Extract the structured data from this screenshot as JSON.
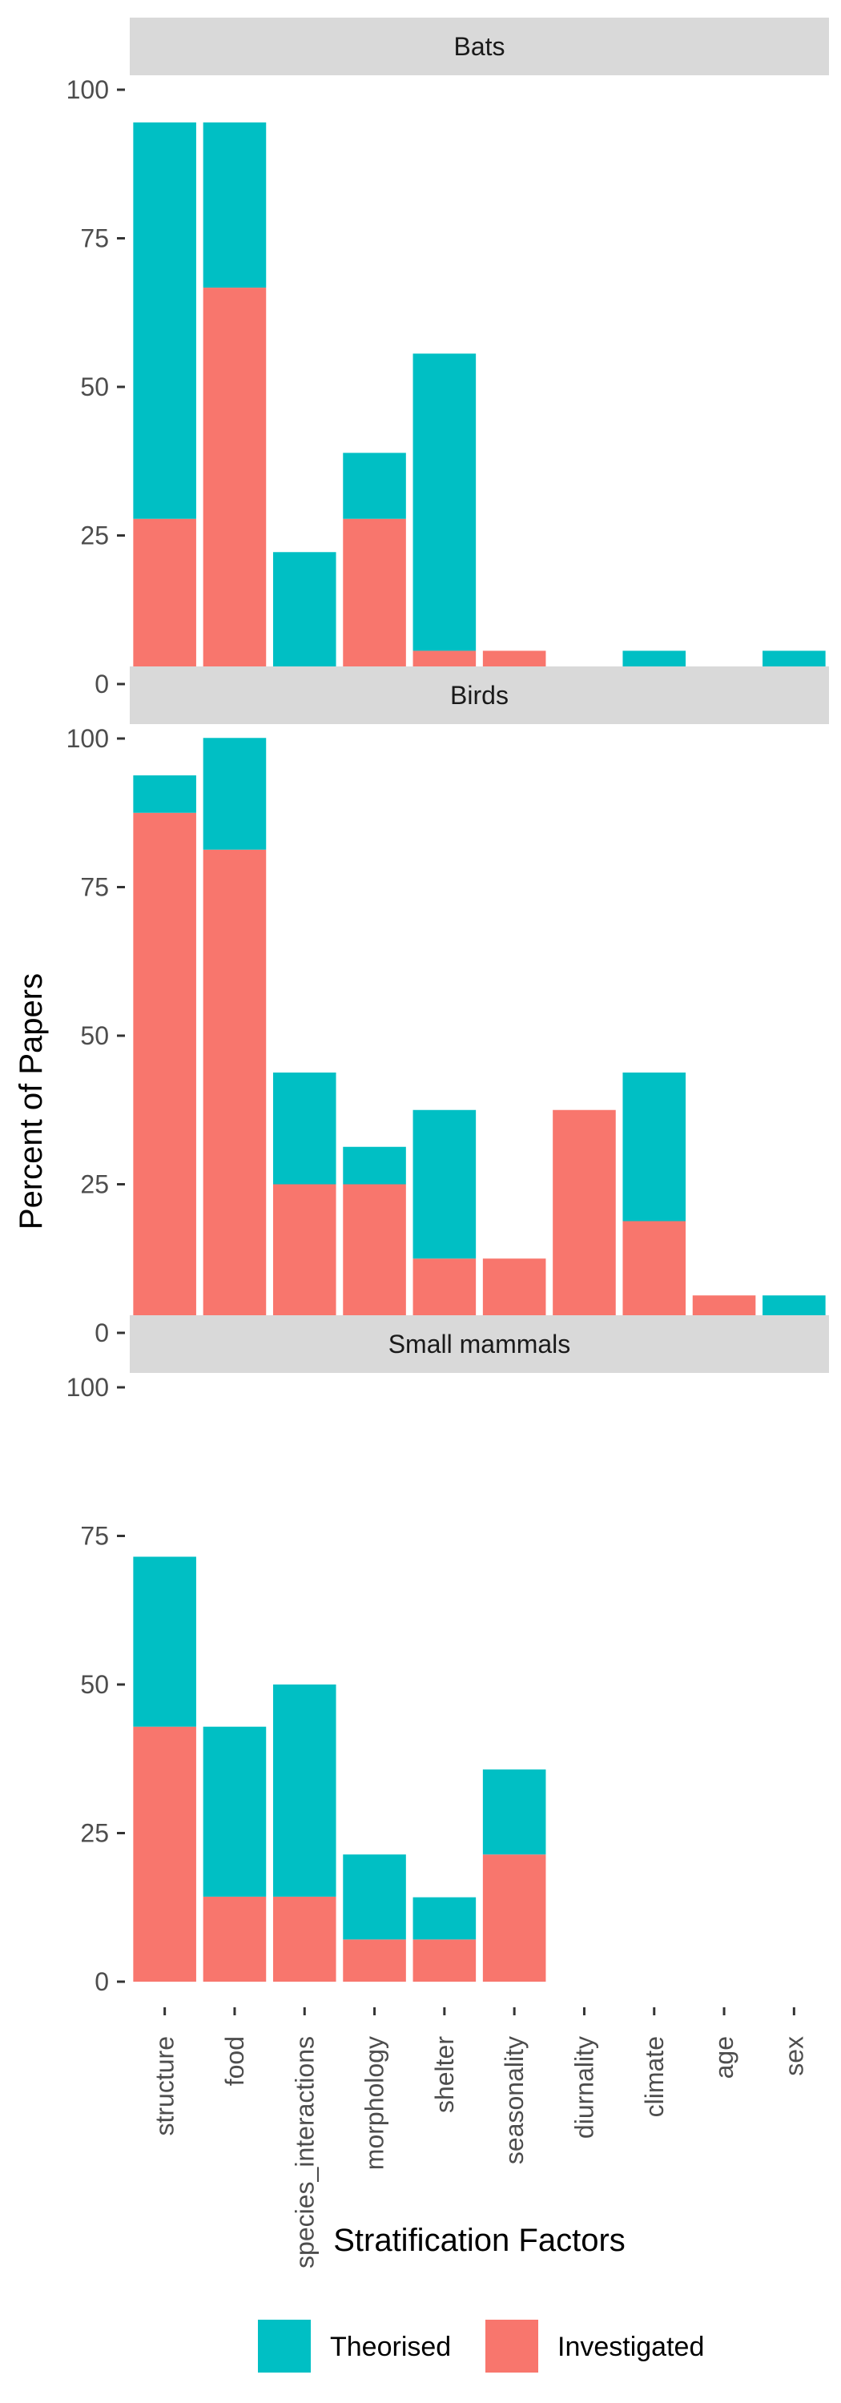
{
  "chart_data": {
    "type": "bar",
    "stacked": true,
    "facet_layout": "vertical",
    "xlabel": "Stratification Factors",
    "ylabel": "Percent of Papers",
    "ylim": [
      0,
      100
    ],
    "yticks": [
      0,
      25,
      50,
      75,
      100
    ],
    "grid": false,
    "categories": [
      "structure",
      "food",
      "species_interactions",
      "morphology",
      "shelter",
      "seasonality",
      "diurnality",
      "climate",
      "age",
      "sex"
    ],
    "legend": {
      "position": "bottom",
      "entries": [
        {
          "name": "Theorised",
          "color": "#00BFC4"
        },
        {
          "name": "Investigated",
          "color": "#F8766D"
        }
      ]
    },
    "facets": [
      {
        "title": "Bats",
        "series": [
          {
            "name": "Investigated",
            "values": [
              27.8,
              66.7,
              0,
              27.8,
              5.6,
              5.6,
              0,
              0,
              0,
              0
            ]
          },
          {
            "name": "Theorised",
            "values": [
              66.7,
              27.8,
              22.2,
              11.1,
              50.0,
              0,
              0,
              5.6,
              0,
              5.6
            ]
          }
        ]
      },
      {
        "title": "Birds",
        "series": [
          {
            "name": "Investigated",
            "values": [
              87.5,
              81.3,
              25.0,
              25.0,
              12.5,
              12.5,
              37.5,
              18.8,
              6.3,
              0
            ]
          },
          {
            "name": "Theorised",
            "values": [
              6.3,
              18.8,
              18.8,
              6.3,
              25.0,
              0,
              0,
              25.0,
              0,
              6.3
            ]
          }
        ]
      },
      {
        "title": "Small mammals",
        "series": [
          {
            "name": "Investigated",
            "values": [
              42.9,
              14.3,
              14.3,
              7.1,
              7.1,
              21.4,
              0,
              0,
              0,
              0
            ]
          },
          {
            "name": "Theorised",
            "values": [
              28.6,
              28.6,
              35.7,
              14.3,
              7.1,
              14.3,
              0,
              0,
              0,
              0
            ]
          }
        ]
      }
    ]
  }
}
